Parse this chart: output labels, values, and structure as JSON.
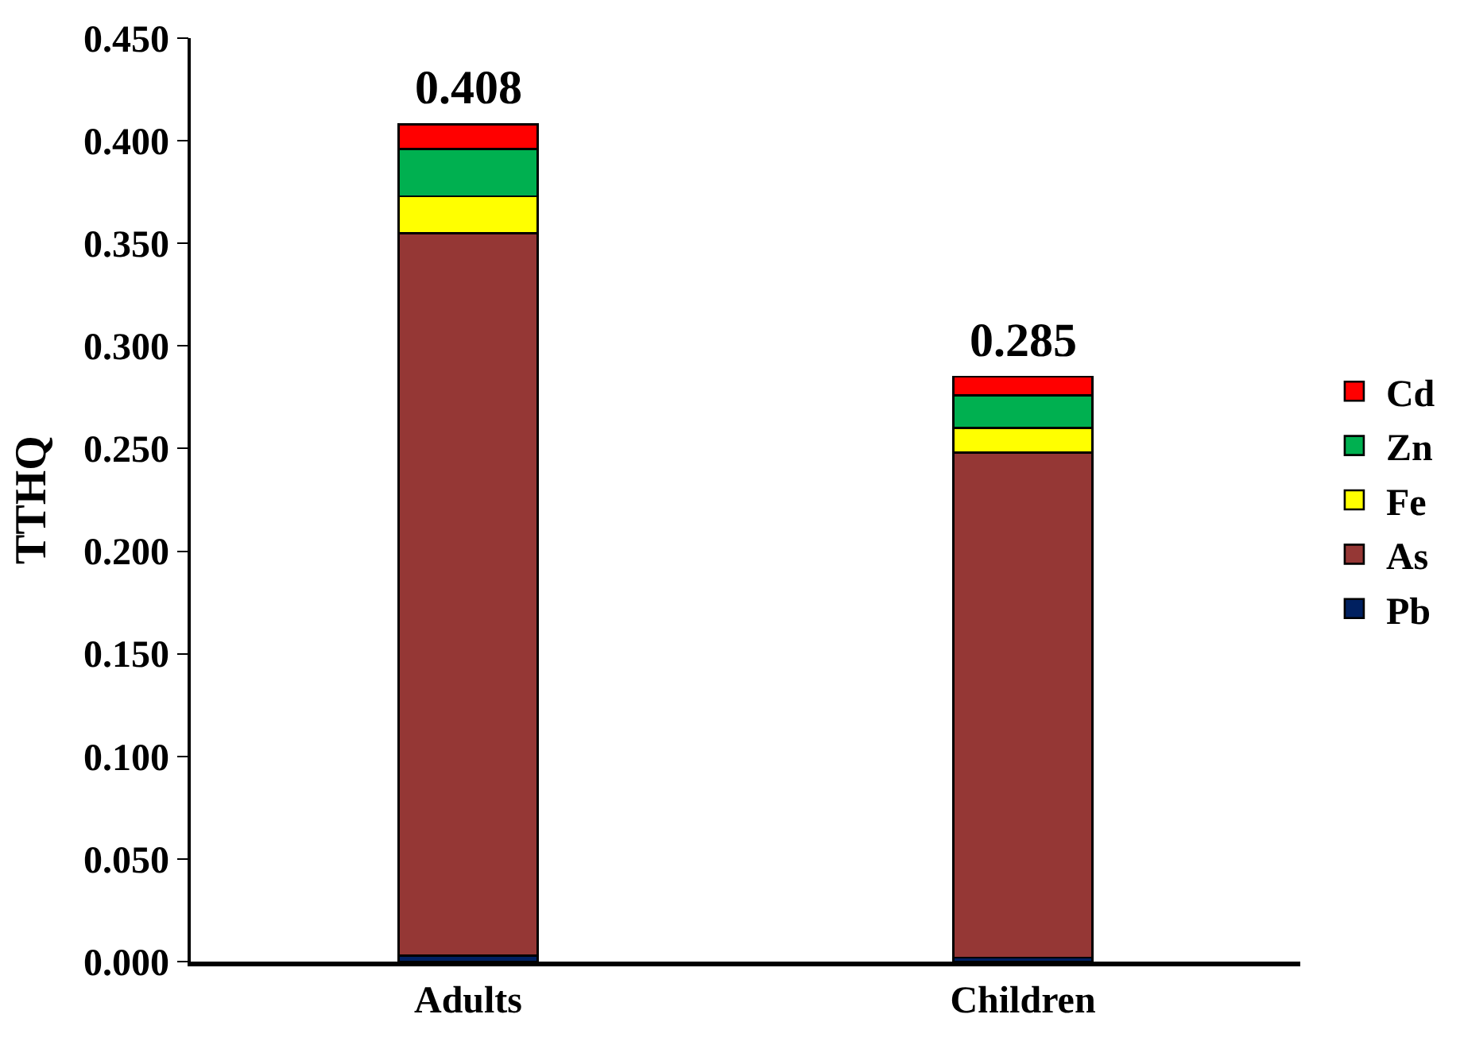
{
  "chart_data": {
    "type": "bar",
    "stacked": true,
    "ylabel": "TTHQ",
    "categories": [
      "Adults",
      "Children"
    ],
    "series": [
      {
        "name": "Pb",
        "color": "#002060",
        "values": [
          0.003,
          0.002
        ]
      },
      {
        "name": "As",
        "color": "#953735",
        "values": [
          0.352,
          0.246
        ]
      },
      {
        "name": "Fe",
        "color": "#ffff00",
        "values": [
          0.018,
          0.012
        ]
      },
      {
        "name": "Zn",
        "color": "#00b050",
        "values": [
          0.023,
          0.016
        ]
      },
      {
        "name": "Cd",
        "color": "#ff0000",
        "values": [
          0.012,
          0.009
        ]
      }
    ],
    "totals": [
      "0.408",
      "0.285"
    ],
    "ylim": [
      0,
      0.45
    ],
    "yticks": [
      {
        "value": 0,
        "label": "0.000"
      },
      {
        "value": 0.05,
        "label": "0.050"
      },
      {
        "value": 0.1,
        "label": "0.100"
      },
      {
        "value": 0.15,
        "label": "0.150"
      },
      {
        "value": 0.2,
        "label": "0.200"
      },
      {
        "value": 0.25,
        "label": "0.250"
      },
      {
        "value": 0.3,
        "label": "0.300"
      },
      {
        "value": 0.35,
        "label": "0.350"
      },
      {
        "value": 0.4,
        "label": "0.400"
      },
      {
        "value": 0.45,
        "label": "0.450"
      }
    ],
    "legend": "right"
  }
}
